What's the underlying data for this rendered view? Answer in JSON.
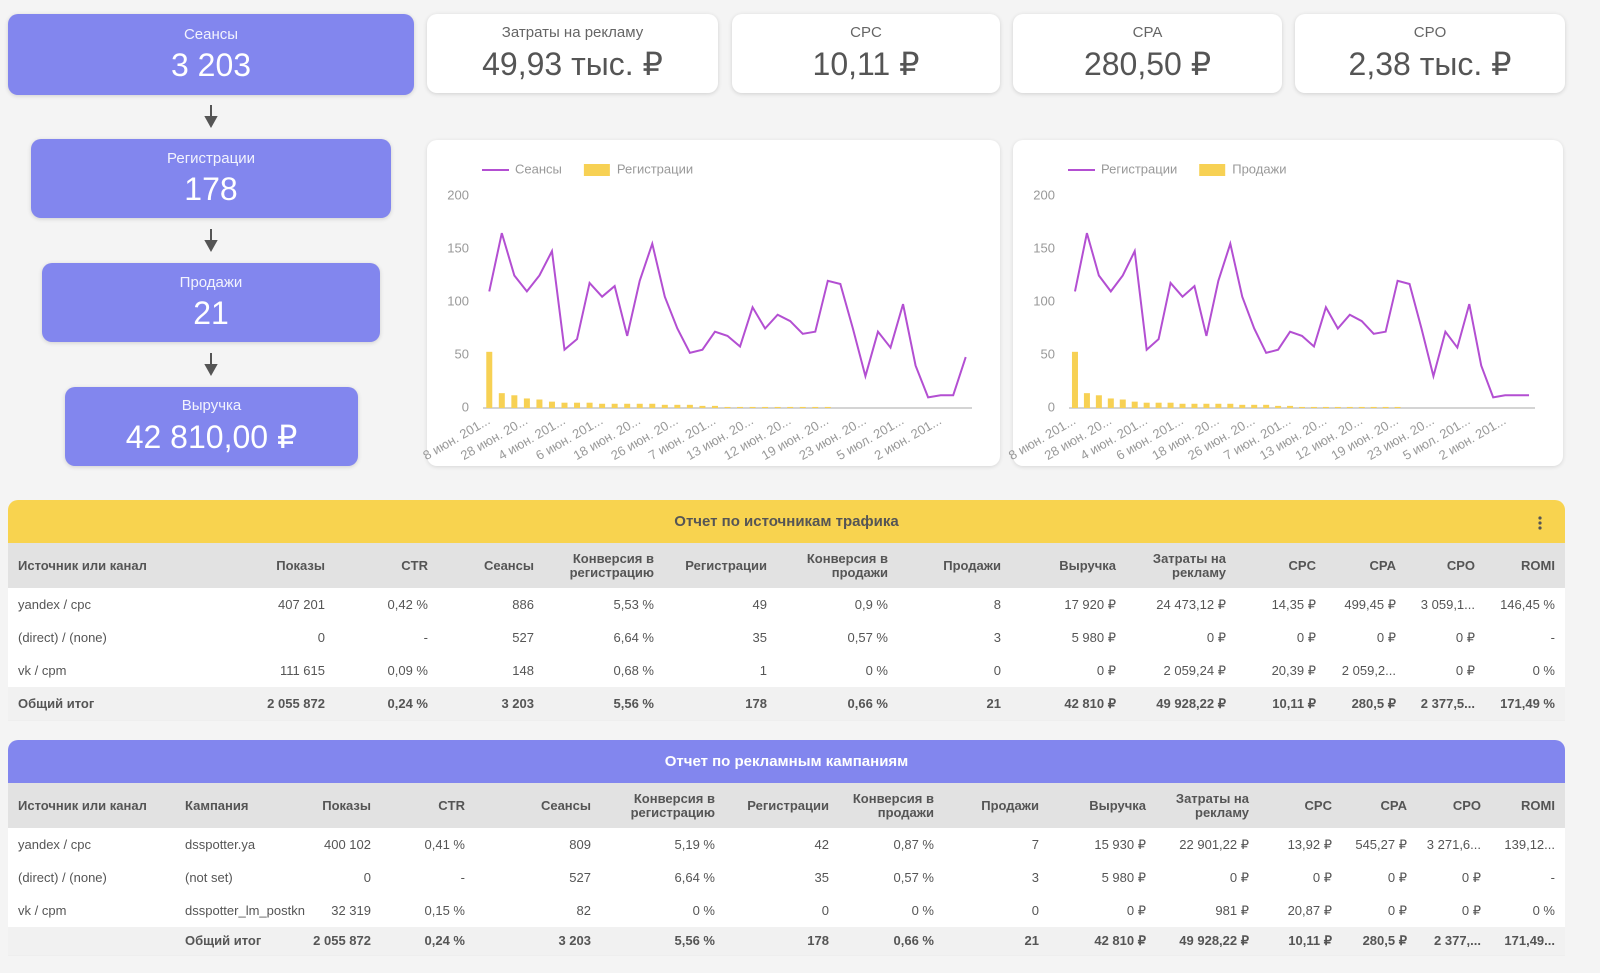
{
  "funnel": [
    {
      "label": "Сеансы",
      "value": "3 203"
    },
    {
      "label": "Регистрации",
      "value": "178"
    },
    {
      "label": "Продажи",
      "value": "21"
    },
    {
      "label": "Выручка",
      "value": "42 810,00 ₽"
    }
  ],
  "kpis": [
    {
      "label": "Затраты на рекламу",
      "value": "49,93 тыс. ₽"
    },
    {
      "label": "CPC",
      "value": "10,11 ₽"
    },
    {
      "label": "CPA",
      "value": "280,50 ₽"
    },
    {
      "label": "CPO",
      "value": "2,38 тыс. ₽"
    }
  ],
  "chart_data": [
    {
      "type": "combo",
      "categories": [
        "8 июн. 201...",
        null,
        null,
        "28 июн. 20...",
        null,
        null,
        "4 июн. 201...",
        null,
        null,
        "6 июн. 201...",
        null,
        null,
        "18 июн. 20...",
        null,
        null,
        "26 июн. 20...",
        null,
        null,
        "7 июн. 201...",
        null,
        null,
        "13 июн. 20...",
        null,
        null,
        "12 июн. 20...",
        null,
        null,
        "19 июн. 20...",
        null,
        null,
        "23 июн. 20...",
        null,
        null,
        "5 июл. 201...",
        null,
        null,
        "2 июн. 201...",
        null,
        null
      ],
      "series": [
        {
          "name": "Сеансы",
          "type": "line",
          "color": "#b34fd2",
          "values": [
            110,
            165,
            125,
            110,
            125,
            148,
            55,
            65,
            118,
            105,
            115,
            68,
            120,
            155,
            105,
            75,
            52,
            55,
            72,
            68,
            58,
            95,
            75,
            88,
            82,
            70,
            72,
            120,
            117,
            75,
            30,
            72,
            57,
            98,
            40,
            10,
            12,
            12,
            48
          ]
        },
        {
          "name": "Регистрации",
          "type": "bar",
          "color": "#f7d154",
          "values": [
            53,
            14,
            12,
            9,
            8,
            6,
            5,
            5,
            5,
            4,
            4,
            4,
            4,
            4,
            3,
            3,
            3,
            2,
            2,
            1,
            1,
            1,
            1,
            1,
            1,
            1,
            1,
            1,
            0,
            0,
            0,
            0,
            0,
            0,
            0,
            0,
            0,
            0,
            0
          ]
        }
      ],
      "ylim": [
        0,
        200
      ],
      "yticks": [
        0,
        50,
        100,
        150,
        200
      ]
    },
    {
      "type": "combo",
      "categories": [
        "8 июн. 201...",
        null,
        null,
        "28 июн. 20...",
        null,
        null,
        "4 июн. 201...",
        null,
        null,
        "6 июн. 201...",
        null,
        null,
        "18 июн. 20...",
        null,
        null,
        "26 июн. 20...",
        null,
        null,
        "7 июн. 201...",
        null,
        null,
        "13 июн. 20...",
        null,
        null,
        "12 июн. 20...",
        null,
        null,
        "19 июн. 20...",
        null,
        null,
        "23 июн. 20...",
        null,
        null,
        "5 июл. 201...",
        null,
        null,
        "2 июн. 201...",
        null,
        null
      ],
      "series": [
        {
          "name": "Регистрации",
          "type": "line",
          "color": "#b34fd2",
          "values": [
            110,
            165,
            125,
            110,
            125,
            148,
            55,
            65,
            118,
            105,
            115,
            68,
            120,
            155,
            105,
            75,
            52,
            55,
            72,
            68,
            58,
            95,
            75,
            88,
            82,
            70,
            72,
            120,
            117,
            75,
            30,
            72,
            57,
            98,
            40,
            10,
            12,
            12,
            12
          ]
        },
        {
          "name": "Продажи",
          "type": "bar",
          "color": "#f7d154",
          "values": [
            53,
            14,
            12,
            9,
            8,
            6,
            5,
            5,
            5,
            4,
            4,
            4,
            4,
            4,
            3,
            3,
            3,
            2,
            2,
            1,
            1,
            1,
            1,
            1,
            1,
            1,
            1,
            1,
            0,
            0,
            0,
            0,
            0,
            0,
            0,
            0,
            0,
            0,
            0
          ]
        }
      ],
      "ylim": [
        0,
        200
      ],
      "yticks": [
        0,
        50,
        100,
        150,
        200
      ]
    }
  ],
  "tables": [
    {
      "title": "Отчет по источникам трафика",
      "columns": [
        "Источник или канал",
        "Показы",
        "CTR",
        "Сеансы",
        "Конверсия в регистрацию",
        "Регистрации",
        "Конверсия в продажи",
        "Продажи",
        "Выручка",
        "Затраты на рекламу",
        "CPC",
        "CPA",
        "CPO",
        "ROMI"
      ],
      "rows": [
        [
          "yandex / cpc",
          "407 201",
          "0,42 %",
          "886",
          "5,53 %",
          "49",
          "0,9 %",
          "8",
          "17 920 ₽",
          "24 473,12 ₽",
          "14,35 ₽",
          "499,45 ₽",
          "3 059,1...",
          "146,45 %"
        ],
        [
          "(direct) / (none)",
          "0",
          "-",
          "527",
          "6,64 %",
          "35",
          "0,57 %",
          "3",
          "5 980 ₽",
          "0 ₽",
          "0 ₽",
          "0 ₽",
          "0 ₽",
          "-"
        ],
        [
          "vk / cpm",
          "111 615",
          "0,09 %",
          "148",
          "0,68 %",
          "1",
          "0 %",
          "0",
          "0 ₽",
          "2 059,24 ₽",
          "20,39 ₽",
          "2 059,2...",
          "0 ₽",
          "0 %"
        ],
        [
          "Общий итог",
          "2 055 872",
          "0,24 %",
          "3 203",
          "5,56 %",
          "178",
          "0,66 %",
          "21",
          "42 810 ₽",
          "49 928,22 ₽",
          "10,11 ₽",
          "280,5 ₽",
          "2 377,5...",
          "171,49 %"
        ]
      ]
    },
    {
      "title": "Отчет по рекламным кампаниям",
      "columns": [
        "Источник или канал",
        "Кампания",
        "Показы",
        "CTR",
        "Сеансы",
        "Конверсия в регистрацию",
        "Регистрации",
        "Конверсия в продажи",
        "Продажи",
        "Выручка",
        "Затраты на рекламу",
        "CPC",
        "CPA",
        "CPO",
        "ROMI"
      ],
      "rows": [
        [
          "yandex / cpc",
          "dsspotter.ya",
          "400 102",
          "0,41 %",
          "809",
          "5,19 %",
          "42",
          "0,87 %",
          "7",
          "15 930 ₽",
          "22 901,22 ₽",
          "13,92 ₽",
          "545,27 ₽",
          "3 271,6...",
          "139,12..."
        ],
        [
          "(direct) / (none)",
          "(not set)",
          "0",
          "-",
          "527",
          "6,64 %",
          "35",
          "0,57 %",
          "3",
          "5 980 ₽",
          "0 ₽",
          "0 ₽",
          "0 ₽",
          "0 ₽",
          "-"
        ],
        [
          "vk / cpm",
          "dsspotter_lm_postkn",
          "32 319",
          "0,15 %",
          "82",
          "0 %",
          "0",
          "0 %",
          "0",
          "0 ₽",
          "981 ₽",
          "20,87 ₽",
          "0 ₽",
          "0 ₽",
          "0 %"
        ],
        [
          null,
          "Общий итог",
          "2 055 872",
          "0,24 %",
          "3 203",
          "5,56 %",
          "178",
          "0,66 %",
          "21",
          "42 810 ₽",
          "49 928,22 ₽",
          "10,11 ₽",
          "280,5 ₽",
          "2 377,...",
          "171,49..."
        ]
      ]
    }
  ]
}
